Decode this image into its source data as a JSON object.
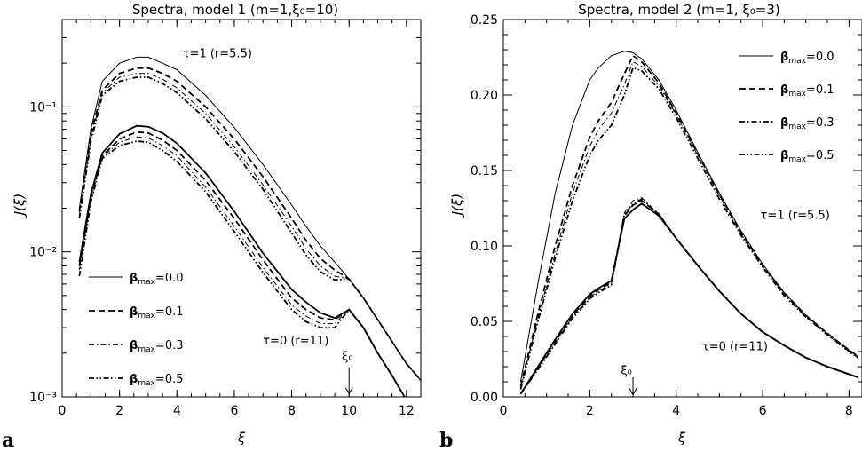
{
  "figure": {
    "panel_labels": [
      "a",
      "b"
    ]
  },
  "chart_data": [
    {
      "id": "panel-a",
      "type": "line",
      "title": "Spectra, model 1 (m=1,ξ₀=10)",
      "xlabel": "ξ",
      "ylabel": "J(ξ)",
      "xlim": [
        0,
        12.5
      ],
      "ylim": [
        0.001,
        0.4
      ],
      "yscale": "log",
      "xticks": [
        0,
        2,
        4,
        6,
        8,
        10,
        12
      ],
      "yticks": [
        {
          "value": 0.001,
          "label": "10⁻³"
        },
        {
          "value": 0.01,
          "label": "10⁻²"
        },
        {
          "value": 0.1,
          "label": "10⁻¹"
        }
      ],
      "legend_position": "lower-left",
      "legend": [
        {
          "label": "βmax=0.0",
          "style": "solid"
        },
        {
          "label": "βmax=0.1",
          "style": "dashed"
        },
        {
          "label": "βmax=0.3",
          "style": "dashdot"
        },
        {
          "label": "βmax=0.5",
          "style": "dashdotdot"
        }
      ],
      "annotations": [
        {
          "text": "τ=1 (r=5.5)",
          "x": 4.2,
          "y": 0.22
        },
        {
          "text": "τ=0 (r=11)",
          "x": 7.0,
          "y": 0.0023
        },
        {
          "text": "ξ₀",
          "x": 9.75,
          "y": 0.0018
        }
      ],
      "arrow": {
        "x": 10,
        "y_from": 0.0016,
        "y_to": 0.00105
      },
      "x": [
        0.6,
        1.0,
        1.4,
        2.0,
        2.6,
        3.0,
        3.5,
        4.0,
        5.0,
        6.0,
        7.0,
        8.0,
        8.5,
        9.0,
        9.5,
        10.0,
        10.5,
        11.0,
        11.5,
        12.0,
        12.5
      ],
      "series": [
        {
          "group": "tau=1",
          "beta": "0.0",
          "style": "solid",
          "width": 1.0,
          "values": [
            0.02,
            0.07,
            0.15,
            0.2,
            0.22,
            0.22,
            0.2,
            0.18,
            0.12,
            0.072,
            0.04,
            0.021,
            0.015,
            0.011,
            0.0085,
            0.0065,
            0.0048,
            0.0034,
            0.0024,
            0.0017,
            0.0013
          ]
        },
        {
          "group": "tau=1",
          "beta": "0.1",
          "style": "dashed",
          "width": 1.8,
          "values": [
            0.019,
            0.065,
            0.13,
            0.17,
            0.185,
            0.185,
            0.17,
            0.15,
            0.1,
            0.06,
            0.033,
            0.017,
            0.012,
            0.009,
            0.0075,
            0.0065,
            0.0048,
            0.0034,
            0.0024,
            0.0017,
            0.0013
          ]
        },
        {
          "group": "tau=1",
          "beta": "0.3",
          "style": "dashdot",
          "width": 1.0,
          "values": [
            0.018,
            0.06,
            0.125,
            0.16,
            0.17,
            0.17,
            0.155,
            0.135,
            0.09,
            0.053,
            0.029,
            0.015,
            0.0105,
            0.008,
            0.0068,
            0.0065,
            0.0048,
            0.0034,
            0.0024,
            0.0017,
            0.0013
          ]
        },
        {
          "group": "tau=1",
          "beta": "0.5",
          "style": "dashdotdot",
          "width": 1.8,
          "values": [
            0.017,
            0.057,
            0.12,
            0.15,
            0.16,
            0.16,
            0.145,
            0.125,
            0.083,
            0.049,
            0.027,
            0.0135,
            0.0095,
            0.0073,
            0.0064,
            0.0065,
            0.0048,
            0.0034,
            0.0024,
            0.0017,
            0.0013
          ]
        },
        {
          "group": "tau=0",
          "beta": "0.0",
          "style": "solid",
          "width": 1.8,
          "values": [
            0.0085,
            0.025,
            0.048,
            0.065,
            0.074,
            0.073,
            0.066,
            0.056,
            0.035,
            0.019,
            0.0098,
            0.0055,
            0.0045,
            0.0038,
            0.0035,
            0.004,
            0.003,
            0.002,
            0.0014,
            0.00095,
            0.00085
          ]
        },
        {
          "group": "tau=0",
          "beta": "0.1",
          "style": "dashed",
          "width": 1.8,
          "values": [
            0.008,
            0.024,
            0.046,
            0.06,
            0.067,
            0.066,
            0.059,
            0.05,
            0.031,
            0.017,
            0.0088,
            0.0048,
            0.004,
            0.0035,
            0.0034,
            0.004,
            0.003,
            0.002,
            0.0014,
            0.00095,
            0.00085
          ]
        },
        {
          "group": "tau=0",
          "beta": "0.3",
          "style": "dashdot",
          "width": 1.0,
          "values": [
            0.0075,
            0.023,
            0.045,
            0.057,
            0.062,
            0.061,
            0.054,
            0.046,
            0.028,
            0.015,
            0.0078,
            0.0043,
            0.0036,
            0.0032,
            0.0032,
            0.004,
            0.003,
            0.002,
            0.0014,
            0.00095,
            0.00085
          ]
        },
        {
          "group": "tau=0",
          "beta": "0.5",
          "style": "dashdotdot",
          "width": 1.8,
          "values": [
            0.0068,
            0.022,
            0.044,
            0.054,
            0.058,
            0.057,
            0.05,
            0.042,
            0.026,
            0.0138,
            0.0072,
            0.004,
            0.0033,
            0.003,
            0.003,
            0.004,
            0.003,
            0.002,
            0.0014,
            0.00095,
            0.00085
          ]
        }
      ]
    },
    {
      "id": "panel-b",
      "type": "line",
      "title": "Spectra, model 2 (m=1, ξ₀=3)",
      "xlabel": "ξ",
      "ylabel": "J(ξ)",
      "xlim": [
        0,
        8.3
      ],
      "ylim": [
        0,
        0.25
      ],
      "yscale": "linear",
      "xticks": [
        0,
        2,
        4,
        6,
        8
      ],
      "yticks": [
        {
          "value": 0.0,
          "label": "0.00"
        },
        {
          "value": 0.05,
          "label": "0.05"
        },
        {
          "value": 0.1,
          "label": "0.10"
        },
        {
          "value": 0.15,
          "label": "0.15"
        },
        {
          "value": 0.2,
          "label": "0.20"
        },
        {
          "value": 0.25,
          "label": "0.25"
        }
      ],
      "legend_position": "upper-right",
      "legend": [
        {
          "label": "βmax=0.0",
          "style": "solid"
        },
        {
          "label": "βmax=0.1",
          "style": "dashed"
        },
        {
          "label": "βmax=0.3",
          "style": "dashdot"
        },
        {
          "label": "βmax=0.5",
          "style": "dashdotdot"
        }
      ],
      "annotations": [
        {
          "text": "τ=1 (r=5.5)",
          "x": 5.95,
          "y": 0.118
        },
        {
          "text": "τ=0 (r=11)",
          "x": 4.6,
          "y": 0.031
        },
        {
          "text": "ξ₀",
          "x": 2.72,
          "y": 0.015
        }
      ],
      "arrow": {
        "x": 3,
        "y_from": 0.013,
        "y_to": 0.0015
      },
      "x": [
        0.4,
        0.8,
        1.2,
        1.6,
        2.0,
        2.2,
        2.5,
        2.8,
        3.0,
        3.2,
        3.6,
        4.0,
        4.5,
        5.0,
        5.5,
        6.0,
        6.5,
        7.0,
        7.5,
        8.0,
        8.2
      ],
      "series": [
        {
          "group": "tau=1",
          "beta": "0.0",
          "style": "solid",
          "width": 1.0,
          "values": [
            0.01,
            0.075,
            0.135,
            0.18,
            0.21,
            0.218,
            0.226,
            0.229,
            0.228,
            0.224,
            0.21,
            0.19,
            0.162,
            0.135,
            0.11,
            0.088,
            0.069,
            0.054,
            0.042,
            0.031,
            0.027
          ]
        },
        {
          "group": "tau=1",
          "beta": "0.1",
          "style": "dashed",
          "width": 1.8,
          "values": [
            0.007,
            0.055,
            0.1,
            0.14,
            0.172,
            0.183,
            0.195,
            0.214,
            0.226,
            0.222,
            0.208,
            0.188,
            0.161,
            0.134,
            0.109,
            0.087,
            0.069,
            0.054,
            0.042,
            0.031,
            0.027
          ]
        },
        {
          "group": "tau=1",
          "beta": "0.3",
          "style": "dashdot",
          "width": 1.0,
          "values": [
            0.006,
            0.052,
            0.095,
            0.135,
            0.166,
            0.177,
            0.188,
            0.207,
            0.222,
            0.219,
            0.206,
            0.187,
            0.16,
            0.133,
            0.108,
            0.087,
            0.068,
            0.053,
            0.041,
            0.03,
            0.026
          ]
        },
        {
          "group": "tau=1",
          "beta": "0.5",
          "style": "dashdotdot",
          "width": 1.8,
          "values": [
            0.005,
            0.05,
            0.092,
            0.13,
            0.16,
            0.17,
            0.18,
            0.2,
            0.218,
            0.216,
            0.204,
            0.185,
            0.158,
            0.131,
            0.107,
            0.086,
            0.067,
            0.053,
            0.041,
            0.03,
            0.026
          ]
        },
        {
          "group": "tau=0",
          "beta": "0.0",
          "style": "solid",
          "width": 1.8,
          "values": [
            0.002,
            0.02,
            0.038,
            0.055,
            0.068,
            0.072,
            0.077,
            0.118,
            0.124,
            0.128,
            0.12,
            0.105,
            0.087,
            0.07,
            0.055,
            0.043,
            0.034,
            0.026,
            0.02,
            0.015,
            0.013
          ]
        },
        {
          "group": "tau=0",
          "beta": "0.1",
          "style": "dashed",
          "width": 1.8,
          "values": [
            0.002,
            0.019,
            0.037,
            0.054,
            0.067,
            0.071,
            0.076,
            0.12,
            0.127,
            0.13,
            0.121,
            0.105,
            0.087,
            0.07,
            0.055,
            0.043,
            0.034,
            0.026,
            0.02,
            0.015,
            0.013
          ]
        },
        {
          "group": "tau=0",
          "beta": "0.3",
          "style": "dashdot",
          "width": 1.0,
          "values": [
            0.002,
            0.019,
            0.036,
            0.053,
            0.066,
            0.07,
            0.075,
            0.122,
            0.13,
            0.132,
            0.121,
            0.105,
            0.087,
            0.07,
            0.055,
            0.043,
            0.034,
            0.026,
            0.02,
            0.015,
            0.013
          ]
        },
        {
          "group": "tau=0",
          "beta": "0.5",
          "style": "dashdotdot",
          "width": 1.8,
          "values": [
            0.002,
            0.018,
            0.035,
            0.052,
            0.065,
            0.069,
            0.074,
            0.121,
            0.128,
            0.131,
            0.121,
            0.105,
            0.087,
            0.07,
            0.055,
            0.043,
            0.034,
            0.026,
            0.02,
            0.015,
            0.013
          ]
        }
      ]
    }
  ]
}
